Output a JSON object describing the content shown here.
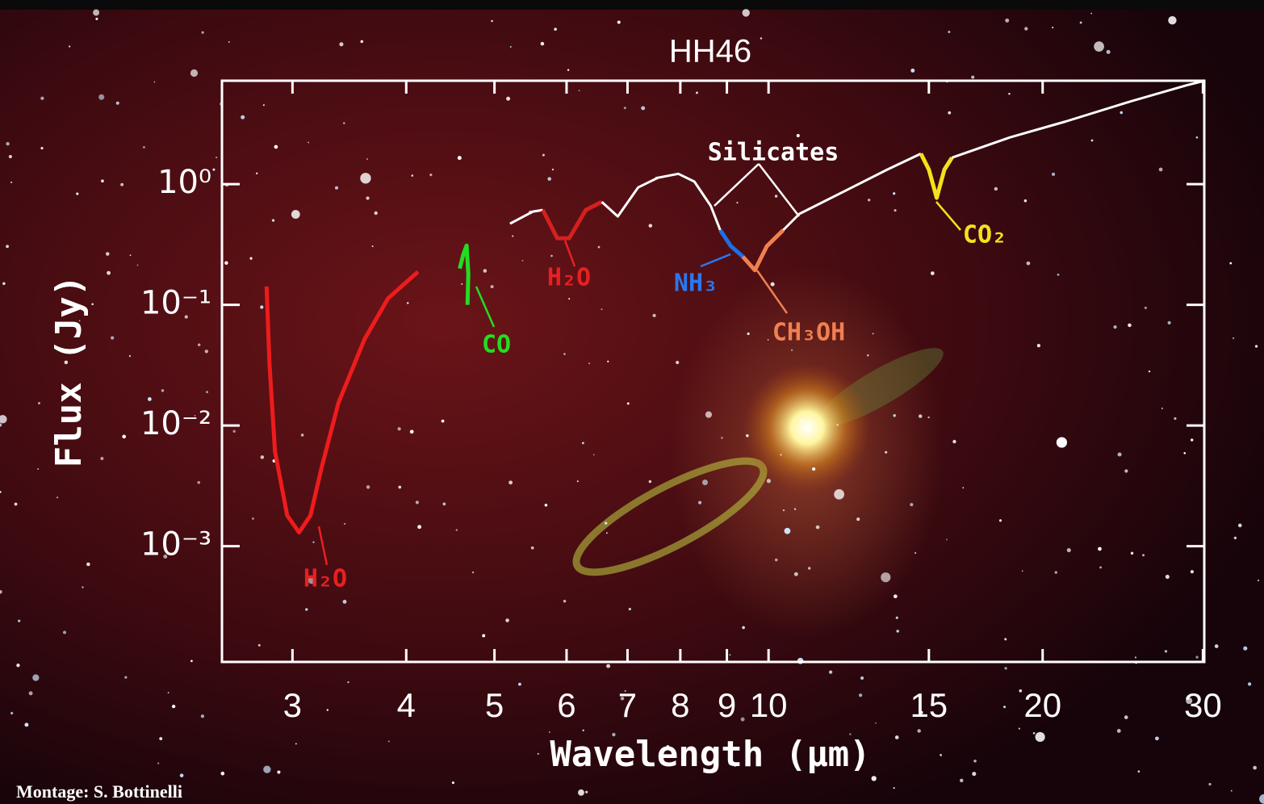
{
  "chart_data": {
    "type": "line",
    "title": "HH46",
    "x_label": "Wavelength (μm)",
    "y_label": "Flux (Jy)",
    "log_x": true,
    "log_y": true,
    "xlim": [
      2.51,
      30.1
    ],
    "ylim": [
      0.00011,
      7.2
    ],
    "xticks": [
      3,
      4,
      5,
      6,
      7,
      8,
      9,
      10,
      15,
      20,
      30
    ],
    "yticks": [
      {
        "value": 1,
        "label": "10⁰"
      },
      {
        "value": 0.1,
        "label": "10⁻¹"
      },
      {
        "value": 0.01,
        "label": "10⁻²"
      },
      {
        "value": 0.001,
        "label": "10⁻³"
      }
    ],
    "series": [
      {
        "color": "#ee1c1c",
        "x": [
          2.81,
          2.83,
          2.87,
          2.96,
          3.05,
          3.14,
          3.23,
          3.37,
          3.6,
          3.82,
          4.12
        ],
        "values": [
          0.142,
          0.033,
          0.0061,
          0.0018,
          0.0013,
          0.0018,
          0.0045,
          0.0154,
          0.052,
          0.113,
          0.188
        ]
      },
      {
        "color": "#22dd22",
        "x": [
          4.58,
          4.62,
          4.66,
          4.68,
          4.67
        ],
        "values": [
          0.2,
          0.26,
          0.31,
          0.18,
          0.1
        ]
      },
      {
        "color": "#ffffff",
        "x": [
          5.2,
          5.51,
          5.65
        ],
        "values": [
          0.471,
          0.593,
          0.612
        ]
      },
      {
        "color": "#d42020",
        "x": [
          5.65,
          5.86,
          6.04,
          6.3,
          6.56
        ],
        "values": [
          0.612,
          0.357,
          0.357,
          0.612,
          0.713
        ]
      },
      {
        "color": "#ffffff",
        "x": [
          6.56,
          6.83,
          7.19,
          7.56,
          7.96,
          8.29,
          8.64,
          8.85
        ],
        "values": [
          0.713,
          0.541,
          0.94,
          1.13,
          1.22,
          1.05,
          0.661,
          0.417
        ]
      },
      {
        "color": "#1e6ee8",
        "x": [
          8.85,
          9.09,
          9.37
        ],
        "values": [
          0.417,
          0.307,
          0.251
        ]
      },
      {
        "color": "#f08050",
        "x": [
          9.37,
          9.66,
          9.96,
          10.38
        ],
        "values": [
          0.251,
          0.194,
          0.307,
          0.417
        ]
      },
      {
        "color": "#ffffff",
        "x": [
          10.38,
          10.81,
          12.2,
          13.5,
          14.7
        ],
        "values": [
          0.417,
          0.567,
          0.898,
          1.32,
          1.79
        ]
      },
      {
        "color": "#f2e21c",
        "x": [
          14.7,
          15.0,
          15.3,
          15.6,
          15.9
        ],
        "values": [
          1.79,
          1.32,
          0.77,
          1.32,
          1.66
        ]
      },
      {
        "color": "#ffffff",
        "x": [
          15.9,
          18.4,
          21.2,
          25.0,
          28.8,
          30
        ],
        "values": [
          1.66,
          2.44,
          3.31,
          4.86,
          6.6,
          7.13
        ]
      }
    ],
    "annotations": [
      {
        "text": "H₂O",
        "color": "#e82020"
      },
      {
        "text": "CO",
        "color": "#22dd22"
      },
      {
        "text": "H₂O",
        "color": "#e82020"
      },
      {
        "text": "NH₃",
        "color": "#2a78f0"
      },
      {
        "text": "CH₃OH",
        "color": "#f08050"
      },
      {
        "text": "CO₂",
        "color": "#f2e21c"
      },
      {
        "text": "Silicates",
        "color": "#ffffff"
      }
    ],
    "credit": "Montage: S. Bottinelli"
  }
}
